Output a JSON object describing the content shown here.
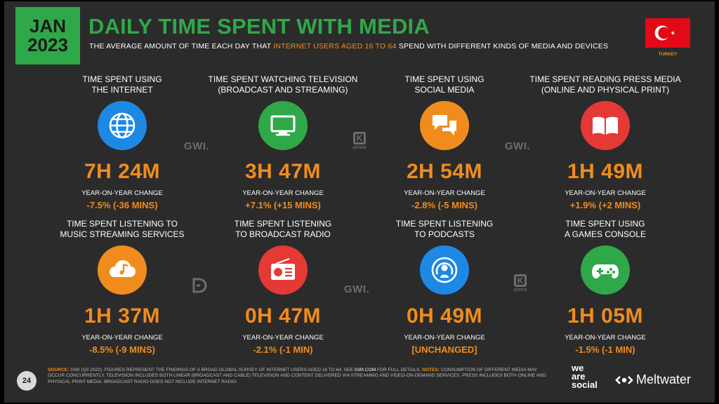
{
  "header": {
    "date_line1": "JAN",
    "date_line2": "2023",
    "title": "DAILY TIME SPENT WITH MEDIA",
    "subtitle_pre": "THE AVERAGE AMOUNT OF TIME EACH DAY THAT ",
    "subtitle_highlight": "INTERNET USERS AGED 16 TO 64",
    "subtitle_post": " SPEND WITH DIFFERENT KINDS OF MEDIA AND DEVICES",
    "country": "TURKEY"
  },
  "yoy_label": "YEAR-ON-YEAR CHANGE",
  "cards": [
    {
      "label_line1": "TIME SPENT USING",
      "label_line2": "THE INTERNET",
      "value": "7H 24M",
      "yoy": "-7.5% (-36 MINS)",
      "icon": "globe-icon",
      "color": "#1e88e5"
    },
    {
      "label_line1": "TIME SPENT WATCHING TELEVISION",
      "label_line2": "(BROADCAST AND STREAMING)",
      "value": "3H 47M",
      "yoy": "+7.1% (+15 MINS)",
      "icon": "tv-icon",
      "color": "#2fa849"
    },
    {
      "label_line1": "TIME SPENT USING",
      "label_line2": "SOCIAL MEDIA",
      "value": "2H 54M",
      "yoy": "-2.8% (-5 MINS)",
      "icon": "chat-bubbles-icon",
      "color": "#f08c1e"
    },
    {
      "label_line1": "TIME SPENT READING PRESS MEDIA",
      "label_line2": "(ONLINE AND PHYSICAL PRINT)",
      "value": "1H 49M",
      "yoy": "+1.9% (+2 MINS)",
      "icon": "book-icon",
      "color": "#e53935"
    },
    {
      "label_line1": "TIME SPENT LISTENING TO",
      "label_line2": "MUSIC STREAMING SERVICES",
      "value": "1H 37M",
      "yoy": "-8.5% (-9 MINS)",
      "icon": "music-cloud-icon",
      "color": "#f08c1e"
    },
    {
      "label_line1": "TIME SPENT LISTENING",
      "label_line2": "TO BROADCAST RADIO",
      "value": "0H 47M",
      "yoy": "-2.1% (-1 MIN)",
      "icon": "radio-icon",
      "color": "#e53935"
    },
    {
      "label_line1": "TIME SPENT LISTENING",
      "label_line2": "TO PODCASTS",
      "value": "0H 49M",
      "yoy": "[UNCHANGED]",
      "icon": "podcast-icon",
      "color": "#1e88e5"
    },
    {
      "label_line1": "TIME SPENT USING",
      "label_line2": "A GAMES CONSOLE",
      "value": "1H 05M",
      "yoy": "-1.5% (-1 MIN)",
      "icon": "gamepad-icon",
      "color": "#2fa849"
    }
  ],
  "watermarks": {
    "gwi": "GWI.",
    "kepios_letter": "K",
    "kepios": "KEPIOS"
  },
  "footer": {
    "page_number": "24",
    "source_label": "SOURCE:",
    "source_text": " GWI (Q3 2022). FIGURES REPRESENT THE FINDINGS OF A BROAD GLOBAL SURVEY OF INTERNET USERS AGED 16 TO 64. SEE ",
    "source_link": "GWI.COM",
    "source_text2": " FOR FULL DETAILS. ",
    "notes_label": "NOTES:",
    "notes_text": " CONSUMPTION OF DIFFERENT MEDIA MAY OCCUR CONCURRENTLY. TELEVISION INCLUDES BOTH LINEAR (BROADCAST AND CABLE) TELEVISION AND CONTENT DELIVERED VIA STREAMING AND VIDEO-ON-DEMAND SERVICES. PRESS INCLUDES BOTH ONLINE AND PHYSICAL PRINT MEDIA. BROADCAST RADIO DOES NOT INCLUDE INTERNET RADIO.",
    "brand_ws_1": "we",
    "brand_ws_2": "are",
    "brand_ws_3": "social",
    "brand_mw": "Meltwater"
  }
}
